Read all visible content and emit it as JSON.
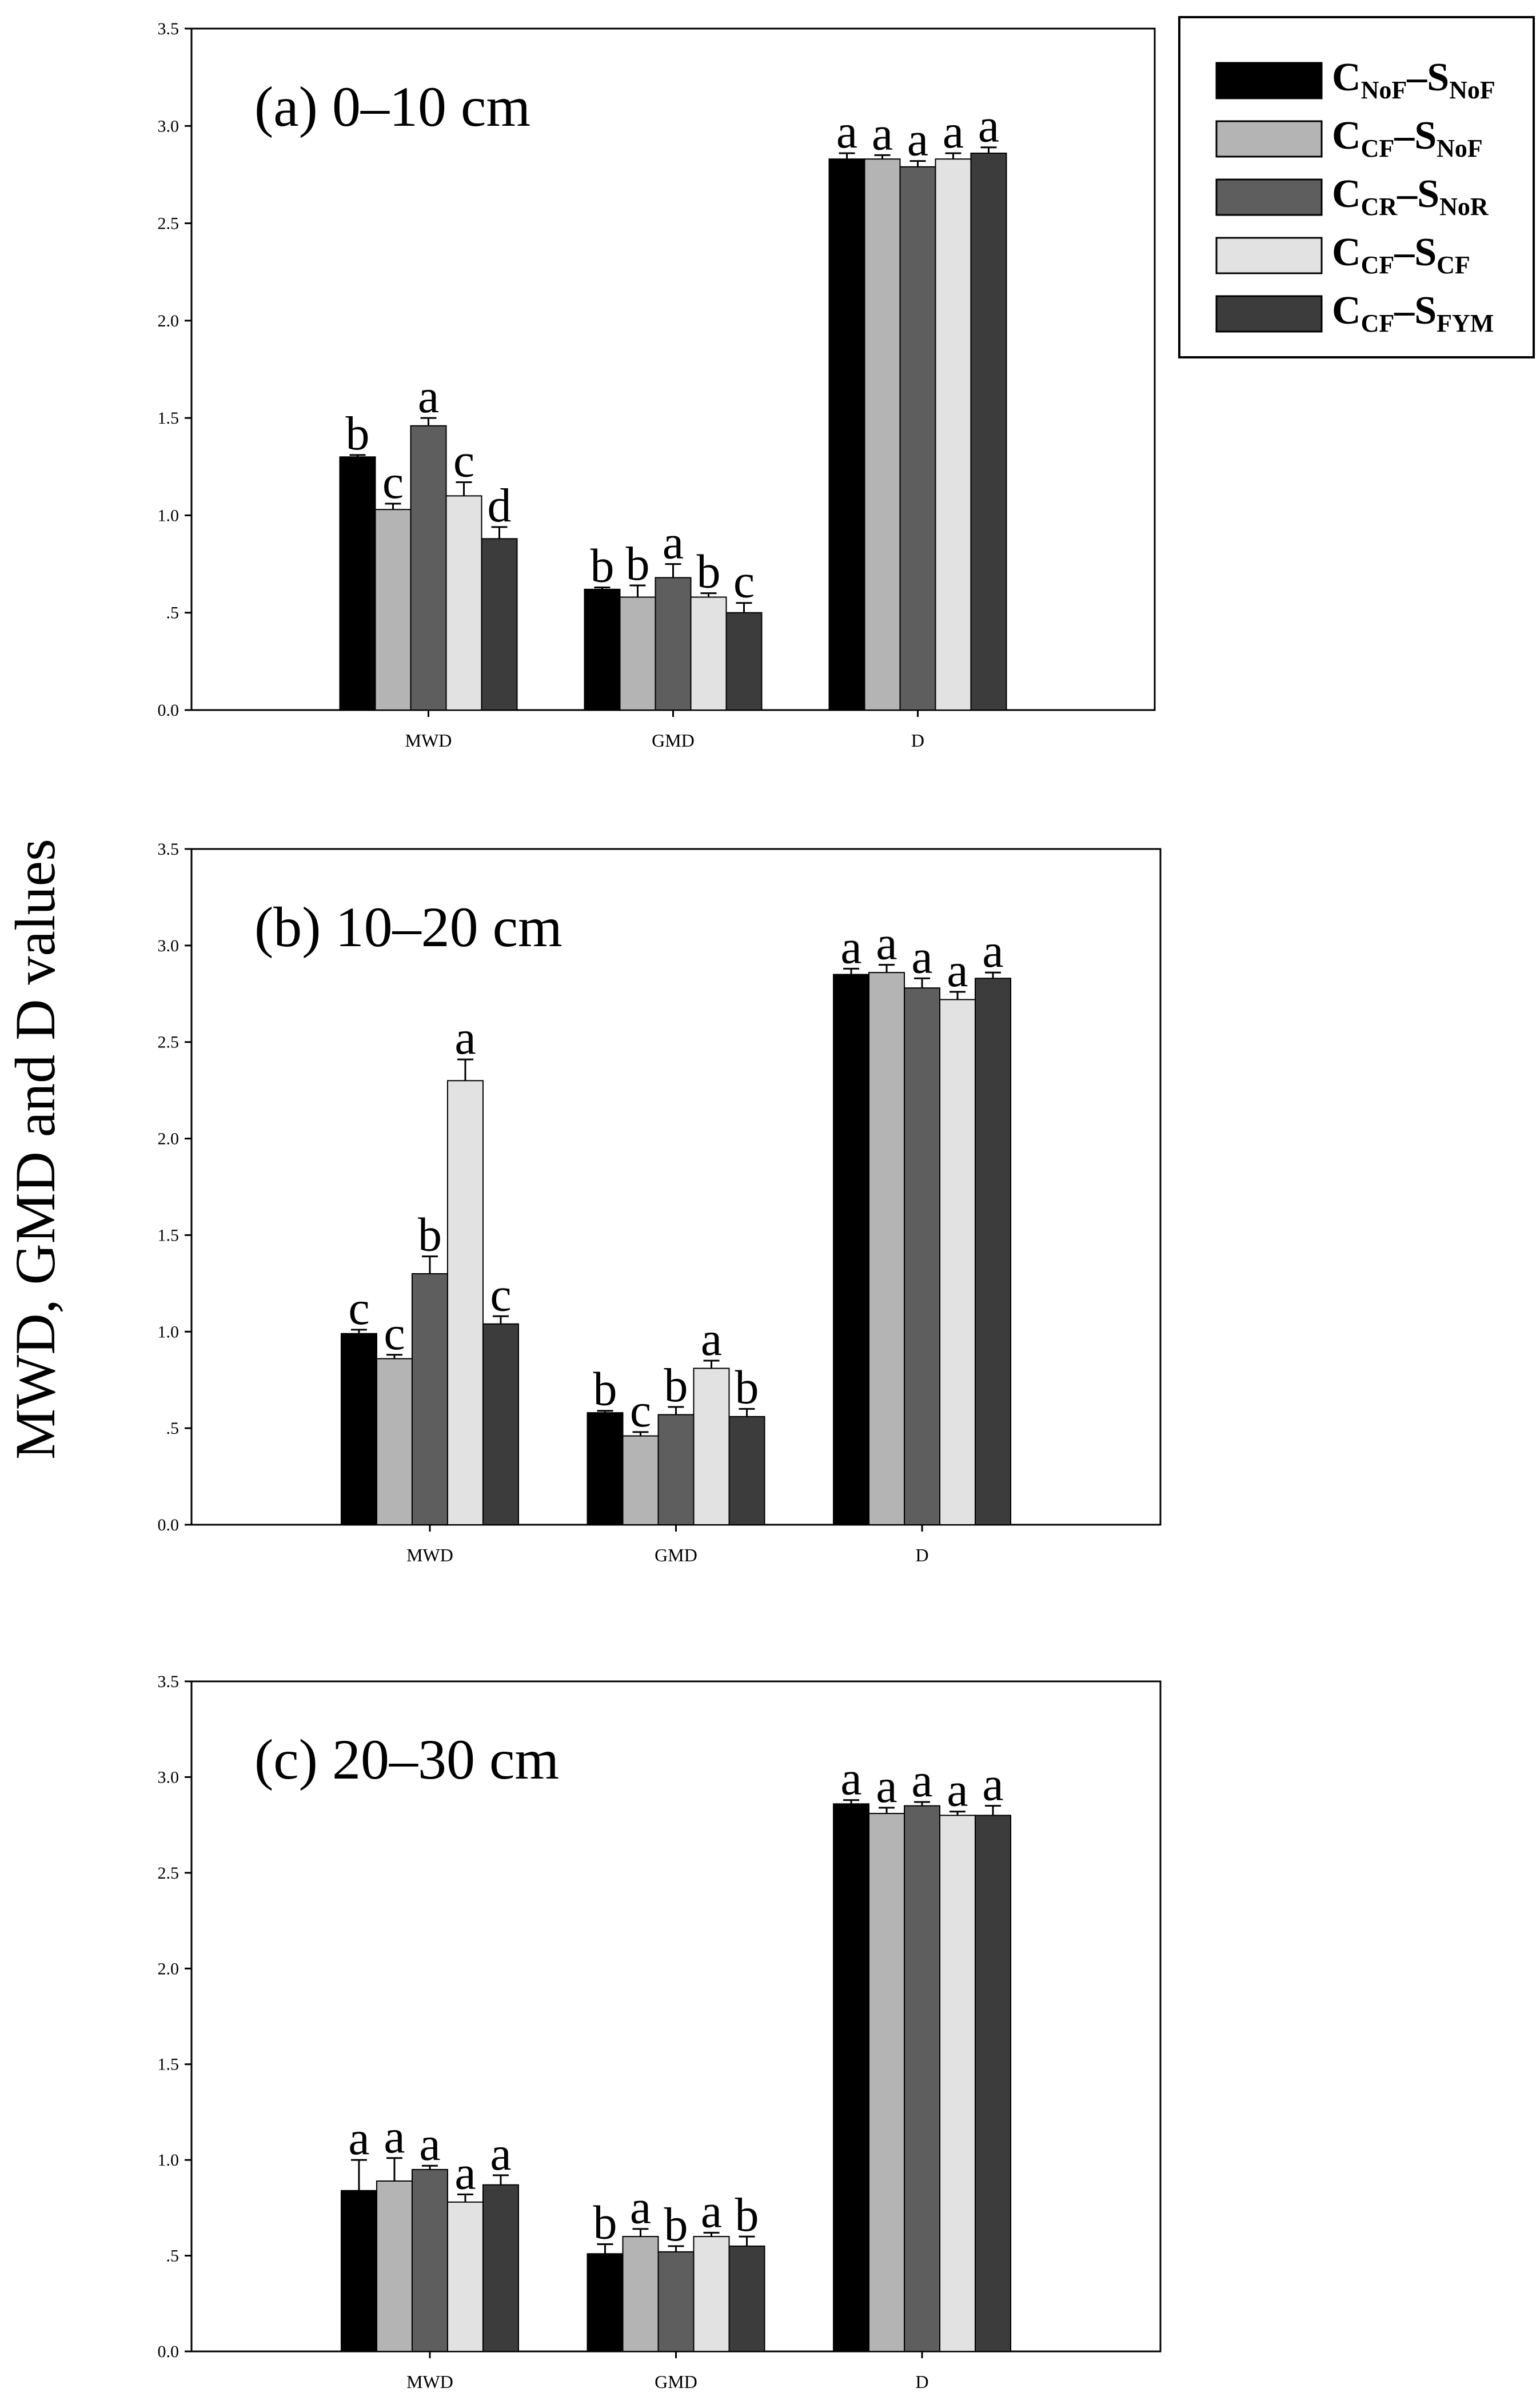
{
  "y_axis_label": "MWD, GMD and D values",
  "legend": [
    {
      "c": "C",
      "c_sub": "NoF",
      "dash": "–",
      "s": "S",
      "s_sub": "NoF",
      "color": "#000000"
    },
    {
      "c": "C",
      "c_sub": "CF",
      "dash": "–",
      "s": "S",
      "s_sub": "NoF",
      "color": "#b4b4b4"
    },
    {
      "c": "C",
      "c_sub": "CR",
      "dash": "–",
      "s": "S",
      "s_sub": "NoR",
      "color": "#5e5e5e"
    },
    {
      "c": "C",
      "c_sub": "CF",
      "dash": "–",
      "s": "S",
      "s_sub": "CF",
      "color": "#e2e2e2"
    },
    {
      "c": "C",
      "c_sub": "CF",
      "dash": "–",
      "s": "S",
      "s_sub": "FYM",
      "color": "#3c3c3c"
    }
  ],
  "chart_data": [
    {
      "type": "bar",
      "title": "(a) 0–10 cm",
      "categories": [
        "MWD",
        "GMD",
        "D"
      ],
      "ylim": [
        0,
        3.5
      ],
      "yticks": [
        "0.0",
        ".5",
        "1.0",
        "1.5",
        "2.0",
        "2.5",
        "3.0",
        "3.5"
      ],
      "series": [
        {
          "name": "CNoF–SNoF",
          "values": [
            1.3,
            0.62,
            2.83
          ],
          "errors": [
            0.01,
            0.01,
            0.03
          ],
          "letters": [
            "b",
            "b",
            "a"
          ]
        },
        {
          "name": "CCF–SNoF",
          "values": [
            1.03,
            0.58,
            2.83
          ],
          "errors": [
            0.03,
            0.06,
            0.02
          ],
          "letters": [
            "c",
            "b",
            "a"
          ]
        },
        {
          "name": "CCR–SNoR",
          "values": [
            1.46,
            0.68,
            2.79
          ],
          "errors": [
            0.04,
            0.07,
            0.03
          ],
          "letters": [
            "a",
            "a",
            "a"
          ]
        },
        {
          "name": "CCF–SCF",
          "values": [
            1.1,
            0.58,
            2.83
          ],
          "errors": [
            0.07,
            0.02,
            0.03
          ],
          "letters": [
            "c",
            "b",
            "a"
          ]
        },
        {
          "name": "CCF–SFYM",
          "values": [
            0.88,
            0.5,
            2.86
          ],
          "errors": [
            0.06,
            0.05,
            0.03
          ],
          "letters": [
            "d",
            "c",
            "a"
          ]
        }
      ]
    },
    {
      "type": "bar",
      "title": "(b) 10–20 cm",
      "categories": [
        "MWD",
        "GMD",
        "D"
      ],
      "ylim": [
        0,
        3.5
      ],
      "yticks": [
        "0.0",
        ".5",
        "1.0",
        "1.5",
        "2.0",
        "2.5",
        "3.0",
        "3.5"
      ],
      "series": [
        {
          "name": "CNoF–SNoF",
          "values": [
            0.99,
            0.58,
            2.85
          ],
          "errors": [
            0.02,
            0.01,
            0.03
          ],
          "letters": [
            "c",
            "b",
            "a"
          ]
        },
        {
          "name": "CCF–SNoF",
          "values": [
            0.86,
            0.46,
            2.86
          ],
          "errors": [
            0.02,
            0.02,
            0.04
          ],
          "letters": [
            "c",
            "c",
            "a"
          ]
        },
        {
          "name": "CCR–SNoR",
          "values": [
            1.3,
            0.57,
            2.78
          ],
          "errors": [
            0.09,
            0.04,
            0.05
          ],
          "letters": [
            "b",
            "b",
            "a"
          ]
        },
        {
          "name": "CCF–SCF",
          "values": [
            2.3,
            0.81,
            2.72
          ],
          "errors": [
            0.11,
            0.04,
            0.04
          ],
          "letters": [
            "a",
            "a",
            "a"
          ]
        },
        {
          "name": "CCF–SFYM",
          "values": [
            1.04,
            0.56,
            2.83
          ],
          "errors": [
            0.04,
            0.04,
            0.03
          ],
          "letters": [
            "c",
            "b",
            "a"
          ]
        }
      ]
    },
    {
      "type": "bar",
      "title": "(c) 20–30 cm",
      "categories": [
        "MWD",
        "GMD",
        "D"
      ],
      "ylim": [
        0,
        3.5
      ],
      "yticks": [
        "0.0",
        ".5",
        "1.0",
        "1.5",
        "2.0",
        "2.5",
        "3.0",
        "3.5"
      ],
      "series": [
        {
          "name": "CNoF–SNoF",
          "values": [
            0.84,
            0.51,
            2.86
          ],
          "errors": [
            0.16,
            0.05,
            0.02
          ],
          "letters": [
            "a",
            "b",
            "a"
          ]
        },
        {
          "name": "CCF–SNoF",
          "values": [
            0.89,
            0.6,
            2.81
          ],
          "errors": [
            0.12,
            0.04,
            0.03
          ],
          "letters": [
            "a",
            "a",
            "a"
          ]
        },
        {
          "name": "CCR–SNoR",
          "values": [
            0.95,
            0.52,
            2.85
          ],
          "errors": [
            0.02,
            0.03,
            0.02
          ],
          "letters": [
            "a",
            "b",
            "a"
          ]
        },
        {
          "name": "CCF–SCF",
          "values": [
            0.78,
            0.6,
            2.8
          ],
          "errors": [
            0.04,
            0.02,
            0.02
          ],
          "letters": [
            "a",
            "a",
            "a"
          ]
        },
        {
          "name": "CCF–SFYM",
          "values": [
            0.87,
            0.55,
            2.8
          ],
          "errors": [
            0.05,
            0.05,
            0.05
          ],
          "letters": [
            "a",
            "b",
            "a"
          ]
        }
      ]
    }
  ]
}
